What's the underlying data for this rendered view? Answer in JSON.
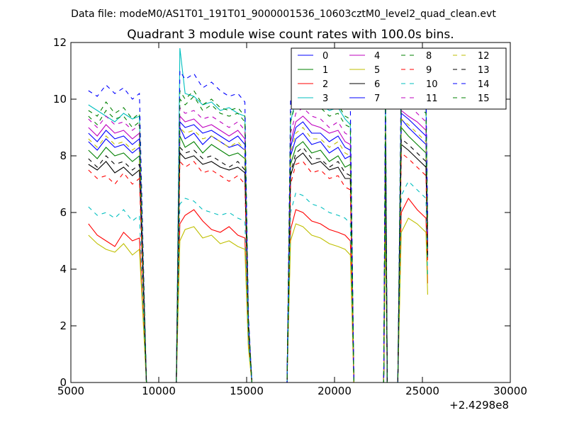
{
  "figure": {
    "suptitle": "Data file: modeM0/AS1T01_191T01_9000001536_10603cztM0_level2_quad_clean.evt"
  },
  "chart_data": {
    "type": "line",
    "title": "Quadrant 3 module wise count rates with 100.0s bins.",
    "xlabel": "",
    "ylabel": "",
    "xlim": [
      5000,
      30000
    ],
    "ylim": [
      0,
      12
    ],
    "x_offset_label": "+2.4298e8",
    "xticks": [
      "5000",
      "10000",
      "15000",
      "20000",
      "25000",
      "30000"
    ],
    "yticks": [
      "0",
      "2",
      "4",
      "6",
      "8",
      "10",
      "12"
    ],
    "grid": false,
    "legend_position": "top-right",
    "legend_columns": 4,
    "x": [
      6000,
      6500,
      7000,
      7500,
      8000,
      8500,
      8900,
      9100,
      9300,
      10500,
      11000,
      11200,
      11500,
      12000,
      12500,
      13000,
      13500,
      14000,
      14500,
      14900,
      15100,
      15300,
      17300,
      17500,
      17800,
      18200,
      18700,
      19200,
      19700,
      20200,
      20600,
      20900,
      21100,
      22700,
      22800,
      22900,
      23000,
      23100,
      23600,
      23800,
      24200,
      24700,
      25200,
      25300
    ],
    "series": [
      {
        "name": "0",
        "color": "#0000ff",
        "dash": "solid",
        "values": [
          8.5,
          8.2,
          8.6,
          8.3,
          8.4,
          8.1,
          8.3,
          4.0,
          0,
          0,
          0,
          9.0,
          8.6,
          8.8,
          8.4,
          8.7,
          8.5,
          8.3,
          8.4,
          8.2,
          2.0,
          0,
          0,
          8.0,
          8.6,
          8.8,
          8.4,
          8.5,
          8.1,
          8.3,
          7.9,
          8.0,
          0,
          0,
          0,
          9.0,
          0,
          0,
          0,
          9.3,
          9.0,
          8.7,
          8.4,
          4.9
        ]
      },
      {
        "name": "1",
        "color": "#008000",
        "dash": "solid",
        "values": [
          8.2,
          7.9,
          8.3,
          8.0,
          8.1,
          7.8,
          8.0,
          4.0,
          0,
          0,
          0,
          8.7,
          8.3,
          8.5,
          8.1,
          8.4,
          8.2,
          8.0,
          8.1,
          7.9,
          2.0,
          0,
          0,
          7.7,
          8.3,
          8.5,
          8.1,
          8.2,
          7.8,
          8.0,
          7.6,
          7.7,
          0,
          0,
          0,
          8.7,
          0,
          0,
          0,
          9.0,
          8.7,
          8.4,
          8.1,
          4.7
        ]
      },
      {
        "name": "2",
        "color": "#ff0000",
        "dash": "solid",
        "values": [
          5.6,
          5.2,
          5.0,
          4.8,
          5.3,
          5.0,
          5.1,
          2.5,
          0,
          0,
          0,
          5.6,
          5.9,
          6.1,
          5.7,
          5.4,
          5.3,
          5.5,
          5.2,
          5.1,
          1.3,
          0,
          0,
          5.4,
          6.1,
          6.0,
          5.7,
          5.6,
          5.4,
          5.3,
          5.2,
          5.0,
          0,
          0,
          0,
          6.2,
          0,
          0,
          0,
          6.0,
          6.5,
          6.1,
          5.8,
          3.5
        ]
      },
      {
        "name": "3",
        "color": "#00bfbf",
        "dash": "solid",
        "values": [
          9.8,
          9.6,
          9.4,
          9.2,
          9.5,
          9.3,
          9.4,
          4.5,
          0,
          0,
          0,
          11.8,
          10.2,
          10.1,
          9.8,
          9.9,
          9.6,
          9.7,
          9.5,
          9.4,
          2.2,
          0,
          0,
          9.2,
          10.0,
          10.3,
          9.9,
          9.8,
          9.6,
          9.7,
          9.3,
          9.1,
          0,
          0,
          0,
          10.0,
          0,
          0,
          0,
          10.5,
          10.3,
          10.1,
          9.8,
          5.5
        ]
      },
      {
        "name": "4",
        "color": "#bf00bf",
        "dash": "solid",
        "values": [
          9.0,
          8.7,
          9.1,
          8.8,
          8.9,
          8.6,
          8.8,
          4.3,
          0,
          0,
          0,
          9.4,
          9.2,
          9.3,
          9.0,
          9.1,
          8.9,
          8.7,
          8.9,
          8.6,
          2.1,
          0,
          0,
          8.5,
          9.2,
          9.4,
          9.1,
          9.0,
          8.8,
          8.9,
          8.5,
          8.4,
          0,
          0,
          0,
          9.4,
          0,
          0,
          0,
          9.6,
          9.4,
          9.2,
          8.9,
          5.1
        ]
      },
      {
        "name": "5",
        "color": "#bfbf00",
        "dash": "solid",
        "values": [
          5.2,
          4.9,
          4.7,
          4.6,
          4.9,
          4.5,
          4.7,
          2.3,
          0,
          0,
          0,
          5.0,
          5.4,
          5.5,
          5.1,
          5.2,
          4.9,
          5.0,
          4.8,
          4.7,
          1.2,
          0,
          0,
          5.0,
          5.6,
          5.5,
          5.2,
          5.1,
          4.9,
          4.8,
          4.7,
          4.5,
          0,
          0,
          0,
          5.6,
          0,
          0,
          0,
          5.3,
          5.8,
          5.6,
          5.3,
          3.1
        ]
      },
      {
        "name": "6",
        "color": "#000000",
        "dash": "solid",
        "values": [
          7.7,
          7.5,
          7.8,
          7.4,
          7.6,
          7.3,
          7.5,
          3.7,
          0,
          0,
          0,
          8.1,
          7.9,
          8.0,
          7.7,
          7.8,
          7.6,
          7.5,
          7.6,
          7.4,
          1.9,
          0,
          0,
          7.3,
          7.9,
          8.1,
          7.7,
          7.8,
          7.5,
          7.6,
          7.2,
          7.2,
          0,
          0,
          0,
          8.1,
          0,
          0,
          0,
          8.4,
          8.2,
          7.9,
          7.6,
          4.4
        ]
      },
      {
        "name": "7",
        "color": "#0000ff",
        "dash": "solid",
        "values": [
          8.8,
          8.5,
          8.9,
          8.6,
          8.7,
          8.4,
          8.6,
          4.2,
          0,
          0,
          0,
          9.2,
          9.0,
          9.1,
          8.8,
          8.9,
          8.7,
          8.5,
          8.7,
          8.4,
          2.0,
          0,
          0,
          8.3,
          9.0,
          9.2,
          8.8,
          8.8,
          8.5,
          8.7,
          8.3,
          8.2,
          0,
          0,
          0,
          9.2,
          0,
          0,
          0,
          9.5,
          9.3,
          9.0,
          8.7,
          5.0
        ]
      },
      {
        "name": "8",
        "color": "#008000",
        "dash": "dashed",
        "values": [
          9.6,
          9.4,
          9.9,
          9.5,
          9.7,
          9.3,
          9.5,
          4.6,
          0,
          0,
          0,
          10.3,
          10.0,
          10.3,
          9.8,
          10.0,
          9.7,
          9.6,
          9.7,
          9.4,
          2.3,
          0,
          0,
          9.5,
          10.2,
          10.5,
          10.0,
          10.0,
          9.7,
          9.8,
          9.4,
          9.3,
          0,
          0,
          0,
          10.2,
          0,
          0,
          0,
          10.7,
          10.4,
          10.1,
          9.8,
          5.6
        ]
      },
      {
        "name": "9",
        "color": "#ff0000",
        "dash": "dashed",
        "values": [
          7.5,
          7.2,
          7.3,
          7.0,
          7.4,
          7.0,
          7.2,
          3.5,
          0,
          0,
          0,
          7.8,
          7.6,
          7.8,
          7.4,
          7.5,
          7.3,
          7.1,
          7.3,
          7.0,
          1.8,
          0,
          0,
          7.0,
          7.7,
          7.8,
          7.4,
          7.5,
          7.2,
          7.3,
          6.9,
          6.8,
          0,
          0,
          0,
          7.9,
          0,
          0,
          0,
          8.1,
          7.9,
          7.6,
          7.3,
          4.2
        ]
      },
      {
        "name": "10",
        "color": "#00bfbf",
        "dash": "dashed",
        "values": [
          6.2,
          5.9,
          6.0,
          5.8,
          6.1,
          5.7,
          5.9,
          2.9,
          0,
          0,
          0,
          6.3,
          6.5,
          6.4,
          6.1,
          6.0,
          5.9,
          6.0,
          5.8,
          5.7,
          1.5,
          0,
          0,
          6.0,
          6.7,
          6.6,
          6.3,
          6.2,
          6.0,
          5.9,
          5.8,
          5.6,
          0,
          0,
          0,
          6.8,
          0,
          0,
          0,
          6.6,
          7.1,
          6.8,
          6.5,
          3.8
        ]
      },
      {
        "name": "11",
        "color": "#bf00bf",
        "dash": "dashed",
        "values": [
          9.3,
          9.0,
          9.4,
          9.1,
          9.2,
          8.9,
          9.1,
          4.4,
          0,
          0,
          0,
          9.7,
          9.5,
          9.6,
          9.3,
          9.4,
          9.2,
          9.0,
          9.2,
          8.9,
          2.2,
          0,
          0,
          8.8,
          9.5,
          9.7,
          9.4,
          9.3,
          9.0,
          9.2,
          8.8,
          8.7,
          0,
          0,
          0,
          9.7,
          0,
          0,
          0,
          10.0,
          9.8,
          9.5,
          9.2,
          5.3
        ]
      },
      {
        "name": "12",
        "color": "#bfbf00",
        "dash": "dashed",
        "values": [
          8.6,
          8.3,
          8.7,
          8.4,
          8.5,
          8.2,
          8.4,
          4.1,
          0,
          0,
          0,
          9.0,
          8.8,
          8.9,
          8.6,
          8.7,
          8.5,
          8.3,
          8.5,
          8.2,
          2.0,
          0,
          0,
          8.1,
          8.8,
          9.0,
          8.6,
          8.6,
          8.3,
          8.5,
          8.1,
          8.0,
          0,
          0,
          0,
          9.0,
          0,
          0,
          0,
          9.3,
          9.1,
          8.8,
          8.5,
          4.9
        ]
      },
      {
        "name": "13",
        "color": "#000000",
        "dash": "dashed",
        "values": [
          7.9,
          7.6,
          8.0,
          7.7,
          7.8,
          7.5,
          7.7,
          3.8,
          0,
          0,
          0,
          8.3,
          8.1,
          8.2,
          7.9,
          8.0,
          7.8,
          7.6,
          7.8,
          7.5,
          1.9,
          0,
          0,
          7.4,
          8.1,
          8.3,
          7.9,
          7.9,
          7.6,
          7.8,
          7.4,
          7.3,
          0,
          0,
          0,
          8.3,
          0,
          0,
          0,
          8.6,
          8.4,
          8.1,
          7.8,
          4.5
        ]
      },
      {
        "name": "14",
        "color": "#0000ff",
        "dash": "dashed",
        "values": [
          10.3,
          10.1,
          10.5,
          10.2,
          10.4,
          10.0,
          10.2,
          4.9,
          0,
          0,
          0,
          11.0,
          10.7,
          10.9,
          10.4,
          10.6,
          10.3,
          10.1,
          10.2,
          9.9,
          2.4,
          0,
          0,
          10.0,
          10.8,
          11.0,
          10.5,
          10.5,
          10.2,
          10.3,
          9.9,
          9.8,
          0,
          0,
          0,
          10.9,
          0,
          0,
          0,
          11.2,
          11.0,
          10.6,
          10.3,
          5.9
        ]
      },
      {
        "name": "15",
        "color": "#008000",
        "dash": "dashed",
        "values": [
          9.4,
          9.1,
          9.6,
          9.3,
          9.4,
          9.0,
          9.2,
          4.5,
          0,
          0,
          0,
          10.0,
          9.8,
          10.1,
          9.6,
          9.8,
          9.5,
          9.4,
          9.5,
          9.2,
          2.2,
          0,
          0,
          9.2,
          9.9,
          10.2,
          9.7,
          9.7,
          9.4,
          9.5,
          9.1,
          9.0,
          0,
          0,
          0,
          9.9,
          0,
          0,
          0,
          10.4,
          10.1,
          9.8,
          9.5,
          5.4
        ]
      }
    ]
  }
}
